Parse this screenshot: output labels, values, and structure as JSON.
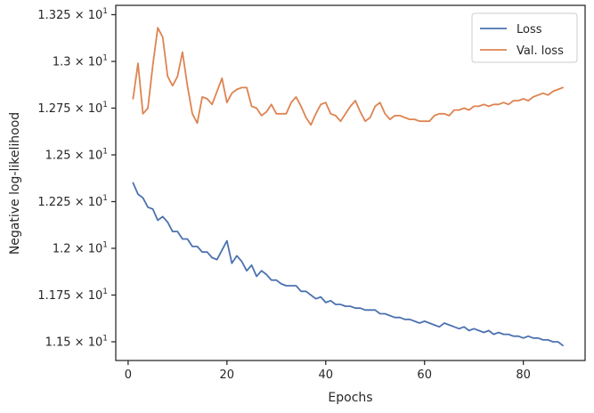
{
  "chart_data": {
    "type": "line",
    "title": "",
    "xlabel": "Epochs",
    "ylabel": "Negative log-likelihood",
    "xlim": [
      -2.5,
      92.5
    ],
    "ylim": [
      11.4,
      13.3
    ],
    "xticks": [
      0,
      20,
      40,
      60,
      80
    ],
    "xtick_labels": [
      "0",
      "20",
      "40",
      "60",
      "80"
    ],
    "yticks": [
      11.5,
      11.75,
      12.0,
      12.25,
      12.5,
      12.75,
      13.0,
      13.25
    ],
    "ytick_labels": [
      {
        "mantissa": "1.15",
        "exp": "1"
      },
      {
        "mantissa": "1.175",
        "exp": "1"
      },
      {
        "mantissa": "1.2",
        "exp": "1"
      },
      {
        "mantissa": "1.225",
        "exp": "1"
      },
      {
        "mantissa": "1.25",
        "exp": "1"
      },
      {
        "mantissa": "1.275",
        "exp": "1"
      },
      {
        "mantissa": "1.3",
        "exp": "1"
      },
      {
        "mantissa": "1.325",
        "exp": "1"
      }
    ],
    "grid": false,
    "legend_position": "top-right",
    "series": [
      {
        "name": "Loss",
        "color": "#4c72b0",
        "x": [
          1,
          2,
          3,
          4,
          5,
          6,
          7,
          8,
          9,
          10,
          11,
          12,
          13,
          14,
          15,
          16,
          17,
          18,
          19,
          20,
          21,
          22,
          23,
          24,
          25,
          26,
          27,
          28,
          29,
          30,
          31,
          32,
          33,
          34,
          35,
          36,
          37,
          38,
          39,
          40,
          41,
          42,
          43,
          44,
          45,
          46,
          47,
          48,
          49,
          50,
          51,
          52,
          53,
          54,
          55,
          56,
          57,
          58,
          59,
          60,
          61,
          62,
          63,
          64,
          65,
          66,
          67,
          68,
          69,
          70,
          71,
          72,
          73,
          74,
          75,
          76,
          77,
          78,
          79,
          80,
          81,
          82,
          83,
          84,
          85,
          86,
          87,
          88
        ],
        "values": [
          12.35,
          12.29,
          12.27,
          12.22,
          12.21,
          12.15,
          12.17,
          12.14,
          12.09,
          12.09,
          12.05,
          12.05,
          12.01,
          12.01,
          11.98,
          11.98,
          11.95,
          11.94,
          11.99,
          12.04,
          11.92,
          11.96,
          11.93,
          11.88,
          11.91,
          11.85,
          11.88,
          11.86,
          11.83,
          11.83,
          11.81,
          11.8,
          11.8,
          11.8,
          11.77,
          11.77,
          11.75,
          11.73,
          11.74,
          11.71,
          11.72,
          11.7,
          11.7,
          11.69,
          11.69,
          11.68,
          11.68,
          11.67,
          11.67,
          11.67,
          11.65,
          11.65,
          11.64,
          11.63,
          11.63,
          11.62,
          11.62,
          11.61,
          11.6,
          11.61,
          11.6,
          11.59,
          11.58,
          11.6,
          11.59,
          11.58,
          11.57,
          11.58,
          11.56,
          11.57,
          11.56,
          11.55,
          11.56,
          11.54,
          11.55,
          11.54,
          11.54,
          11.53,
          11.53,
          11.52,
          11.53,
          11.52,
          11.52,
          11.51,
          11.51,
          11.5,
          11.5,
          11.48
        ]
      },
      {
        "name": "Val. loss",
        "color": "#dd8452",
        "x": [
          1,
          2,
          3,
          4,
          5,
          6,
          7,
          8,
          9,
          10,
          11,
          12,
          13,
          14,
          15,
          16,
          17,
          18,
          19,
          20,
          21,
          22,
          23,
          24,
          25,
          26,
          27,
          28,
          29,
          30,
          31,
          32,
          33,
          34,
          35,
          36,
          37,
          38,
          39,
          40,
          41,
          42,
          43,
          44,
          45,
          46,
          47,
          48,
          49,
          50,
          51,
          52,
          53,
          54,
          55,
          56,
          57,
          58,
          59,
          60,
          61,
          62,
          63,
          64,
          65,
          66,
          67,
          68,
          69,
          70,
          71,
          72,
          73,
          74,
          75,
          76,
          77,
          78,
          79,
          80,
          81,
          82,
          83,
          84,
          85,
          86,
          87,
          88
        ],
        "values": [
          12.8,
          12.99,
          12.72,
          12.75,
          12.98,
          13.18,
          13.13,
          12.92,
          12.87,
          12.92,
          13.05,
          12.87,
          12.72,
          12.67,
          12.81,
          12.8,
          12.77,
          12.84,
          12.91,
          12.78,
          12.83,
          12.85,
          12.86,
          12.86,
          12.76,
          12.75,
          12.71,
          12.73,
          12.77,
          12.72,
          12.72,
          12.72,
          12.78,
          12.81,
          12.76,
          12.7,
          12.66,
          12.72,
          12.77,
          12.78,
          12.72,
          12.71,
          12.68,
          12.72,
          12.76,
          12.79,
          12.73,
          12.68,
          12.7,
          12.76,
          12.78,
          12.72,
          12.69,
          12.71,
          12.71,
          12.7,
          12.69,
          12.69,
          12.68,
          12.68,
          12.68,
          12.71,
          12.72,
          12.72,
          12.71,
          12.74,
          12.74,
          12.75,
          12.74,
          12.76,
          12.76,
          12.77,
          12.76,
          12.77,
          12.77,
          12.78,
          12.77,
          12.79,
          12.79,
          12.8,
          12.79,
          12.81,
          12.82,
          12.83,
          12.82,
          12.84,
          12.85,
          12.86
        ]
      }
    ]
  }
}
